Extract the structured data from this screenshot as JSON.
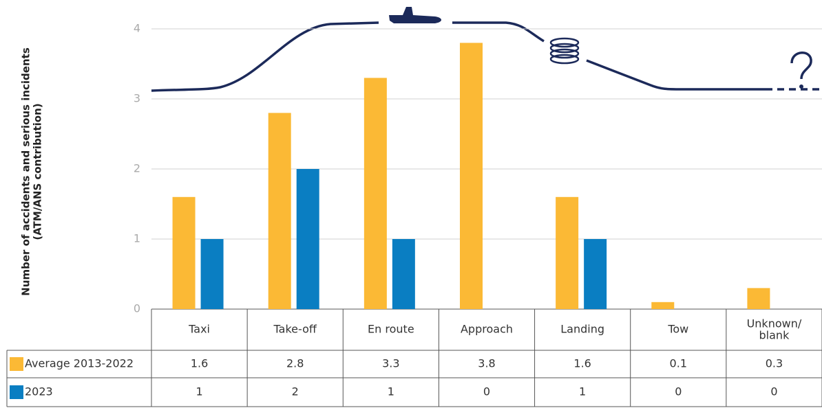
{
  "chart_data": {
    "type": "bar",
    "ylabel": [
      "Number of accidents and serious incidents",
      "(ATM/ANS contribution)"
    ],
    "categories": [
      "Taxi",
      "Take-off",
      "En route",
      "Approach",
      "Landing",
      "Tow",
      "Unknown/\nblank"
    ],
    "series": [
      {
        "name": "Average 2013-2022",
        "color": "#fbb935",
        "values": [
          1.6,
          2.8,
          3.3,
          3.8,
          1.6,
          0.1,
          0.3
        ]
      },
      {
        "name": "2023",
        "color": "#0a7ec2",
        "values": [
          1,
          2,
          1,
          0,
          1,
          0,
          0
        ]
      }
    ],
    "ylim": [
      0,
      4
    ],
    "yticks": [
      0,
      1,
      2,
      3,
      4
    ],
    "grid": true
  }
}
